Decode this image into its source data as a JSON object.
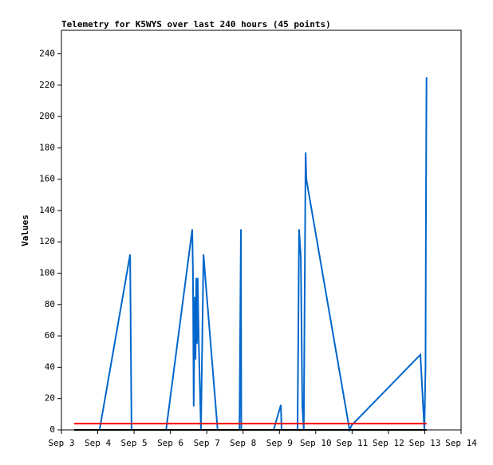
{
  "chart_data": {
    "type": "line",
    "title": "Telemetry for K5WYS over last 240 hours (45 points)",
    "y_label": "Values",
    "xlim": [
      3,
      14
    ],
    "xticks": [
      {
        "value": 3,
        "label": "Sep 3"
      },
      {
        "value": 4,
        "label": "Sep 4"
      },
      {
        "value": 5,
        "label": "Sep 5"
      },
      {
        "value": 6,
        "label": "Sep 6"
      },
      {
        "value": 7,
        "label": "Sep 7"
      },
      {
        "value": 8,
        "label": "Sep 8"
      },
      {
        "value": 9,
        "label": "Sep 9"
      },
      {
        "value": 10,
        "label": "Sep 10"
      },
      {
        "value": 11,
        "label": "Sep 11"
      },
      {
        "value": 12,
        "label": "Sep 12"
      },
      {
        "value": 13,
        "label": "Sep 13"
      },
      {
        "value": 14,
        "label": "Sep 14"
      }
    ],
    "ylim": [
      0,
      255
    ],
    "yticks": [
      0,
      20,
      40,
      60,
      80,
      100,
      120,
      140,
      160,
      180,
      200,
      220,
      240
    ],
    "series": [
      {
        "color": "#0066cc",
        "x": [
          4.05,
          4.89,
          4.91,
          4.93,
          5.88,
          6.6,
          6.62,
          6.64,
          6.67,
          6.69,
          6.71,
          6.73,
          6.75,
          6.78,
          6.84,
          6.91,
          6.95,
          7.3,
          7.9,
          7.92,
          7.94,
          7.95,
          8.84,
          9.04,
          9.06,
          9.5,
          9.54,
          9.59,
          9.63,
          9.67,
          9.72,
          9.74,
          10.93,
          10.99,
          12.88,
          12.99,
          13.02,
          13.03,
          13.04,
          13.05
        ],
        "values": [
          0,
          112,
          55,
          0,
          0,
          128,
          100,
          15,
          85,
          45,
          97,
          55,
          97,
          55,
          0,
          112,
          100,
          0,
          0,
          65,
          128,
          0,
          0,
          16,
          0,
          0,
          128,
          110,
          15,
          0,
          177,
          160,
          0,
          3,
          48,
          0,
          40,
          112,
          185,
          225
        ]
      },
      {
        "color": "#ff0000",
        "x": [
          3.35,
          13.05
        ],
        "values": [
          4,
          4
        ]
      },
      {
        "color": "#000000",
        "x": [
          3.35,
          13.05
        ],
        "values": [
          0,
          0
        ]
      }
    ]
  }
}
